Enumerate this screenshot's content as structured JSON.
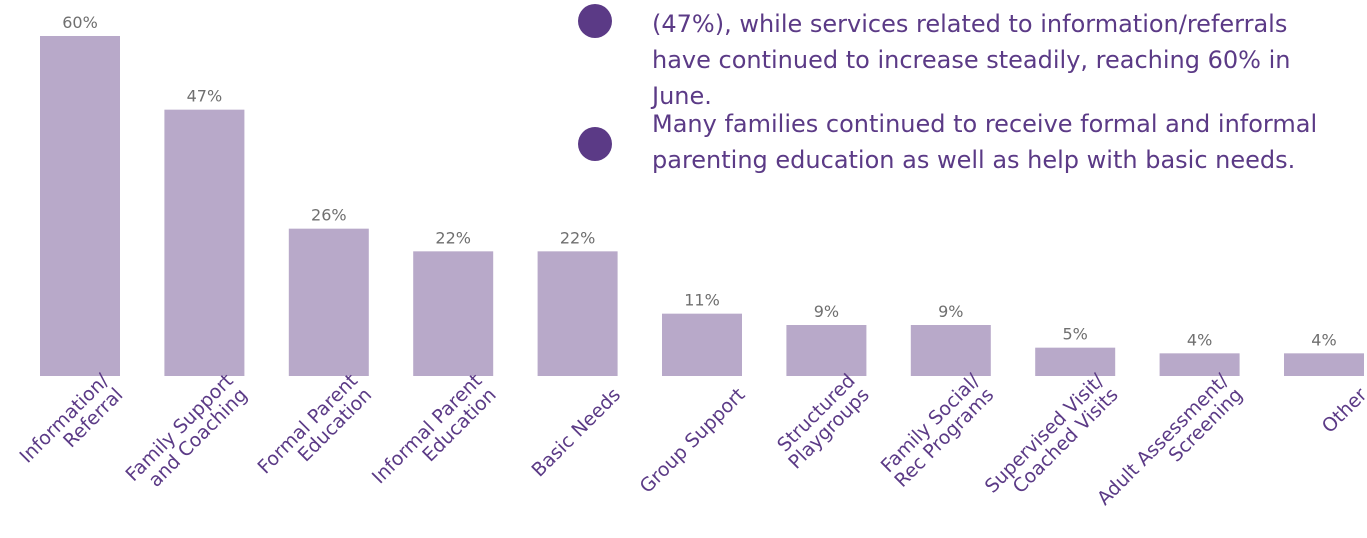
{
  "colors": {
    "bar": "#b8a9c9",
    "value_text": "#6f6f6f",
    "label_text": "#5b3a86",
    "bullet": "#5b3a86"
  },
  "notes": [
    "(47%), while services related to information/referrals have continued to increase steadily, reaching 60% in June.",
    "Many families continued to receive formal and informal parenting education as well as help with basic needs."
  ],
  "chart_data": {
    "type": "bar",
    "categories": [
      [
        "Information/",
        "Referral"
      ],
      [
        "Family Support",
        "and Coaching"
      ],
      [
        "Formal Parent",
        "Education"
      ],
      [
        "Informal Parent",
        "Education"
      ],
      [
        "Basic Needs"
      ],
      [
        "Group Support"
      ],
      [
        "Structured",
        "Playgroups"
      ],
      [
        "Family Social/",
        "Rec Programs"
      ],
      [
        "Supervised Visit/",
        "Coached Visits"
      ],
      [
        "Adult Assessment/",
        "Screening"
      ],
      [
        "Other"
      ]
    ],
    "values": [
      60,
      47,
      26,
      22,
      22,
      11,
      9,
      9,
      5,
      4,
      4
    ],
    "value_labels": [
      "60%",
      "47%",
      "26%",
      "22%",
      "22%",
      "11%",
      "9%",
      "9%",
      "5%",
      "4%",
      "4%"
    ],
    "ylim": [
      0,
      60
    ],
    "grid": false,
    "title": "",
    "xlabel": "",
    "ylabel": ""
  }
}
